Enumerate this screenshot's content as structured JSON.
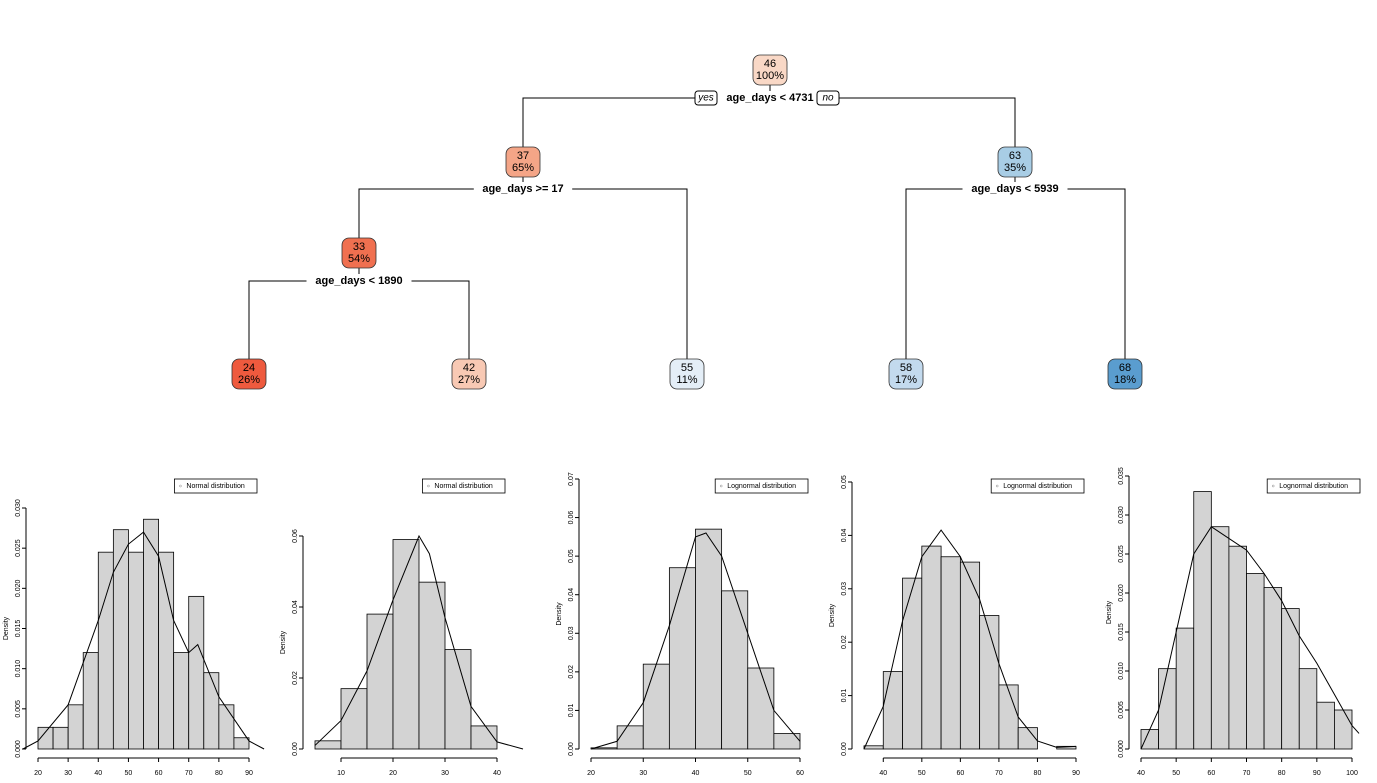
{
  "tree": {
    "yes": "yes",
    "no": "no",
    "nodes": [
      {
        "value": 46,
        "percent": "100%",
        "color": "#f9d8c6",
        "split": "age_days < 4731"
      },
      {
        "value": 37,
        "percent": "65%",
        "color": "#f4a587",
        "split": "age_days >= 17"
      },
      {
        "value": 63,
        "percent": "35%",
        "color": "#a8cde5",
        "split": "age_days < 5939"
      },
      {
        "value": 33,
        "percent": "54%",
        "color": "#f07050"
      },
      {
        "value": 24,
        "percent": "26%",
        "color": "#ee5a3e"
      },
      {
        "value": 42,
        "percent": "27%",
        "color": "#f8c9b4"
      },
      {
        "value": 55,
        "percent": "11%",
        "color": "#e4eef7"
      },
      {
        "value": 58,
        "percent": "17%",
        "color": "#c3daee"
      },
      {
        "value": 68,
        "percent": "18%",
        "color": "#5a9dcf"
      }
    ],
    "node_splits": {
      "3": "age_days < 1890"
    }
  },
  "chart_data": [
    {
      "type": "histogram",
      "legend": "Normal distribution",
      "ylabel": "Density",
      "color": "#d3d3d3",
      "bins": [
        20,
        25,
        30,
        35,
        40,
        45,
        50,
        55,
        60,
        65,
        70,
        75,
        80,
        85,
        90
      ],
      "values": [
        0.0027,
        0.0027,
        0.0055,
        0.012,
        0.0245,
        0.0273,
        0.0245,
        0.0286,
        0.0245,
        0.012,
        0.019,
        0.0095,
        0.0055,
        0.0014
      ],
      "density": {
        "x": [
          15,
          20,
          30,
          40,
          45,
          50,
          55,
          60,
          65,
          70,
          73,
          80,
          90,
          95
        ],
        "values": [
          0,
          0.001,
          0.0055,
          0.016,
          0.022,
          0.0255,
          0.027,
          0.024,
          0.016,
          0.012,
          0.013,
          0.0065,
          0.001,
          0
        ]
      },
      "xlim": [
        20,
        90
      ],
      "xticks": [
        20,
        30,
        40,
        50,
        60,
        70,
        80,
        90
      ],
      "ylim": [
        0,
        0.03
      ],
      "yticks": [
        {
          "value": 0,
          "label": "0.000"
        },
        0.005,
        {
          "value": 0.01,
          "label": "0.010"
        },
        0.015,
        {
          "value": 0.02,
          "label": "0.020"
        },
        0.025,
        {
          "value": 0.03,
          "label": "0.030"
        }
      ]
    },
    {
      "type": "histogram",
      "legend": "Normal distribution",
      "ylabel": "Density",
      "color": "#d3d3d3",
      "bins": [
        5,
        10,
        15,
        20,
        25,
        30,
        35,
        40
      ],
      "values": [
        0.0023,
        0.017,
        0.038,
        0.059,
        0.047,
        0.028,
        0.0065
      ],
      "density": {
        "x": [
          5,
          10,
          15,
          20,
          25,
          27,
          30,
          35,
          40,
          45
        ],
        "values": [
          0.001,
          0.008,
          0.022,
          0.042,
          0.06,
          0.055,
          0.037,
          0.012,
          0.002,
          0
        ]
      },
      "xlim": [
        5,
        40
      ],
      "xticks": [
        10,
        20,
        30,
        40
      ],
      "ylim": [
        0,
        0.06
      ],
      "yticks": [
        {
          "value": 0,
          "label": "0.00"
        },
        0.02,
        0.04,
        0.06
      ]
    },
    {
      "type": "histogram",
      "legend": "Lognormal distribution",
      "ylabel": "Density",
      "color": "#d3d3d3",
      "bins": [
        20,
        25,
        30,
        35,
        40,
        45,
        50,
        55,
        60
      ],
      "values": [
        0.0003,
        0.006,
        0.022,
        0.047,
        0.057,
        0.041,
        0.021,
        0.004
      ],
      "density": {
        "x": [
          20,
          25,
          30,
          35,
          40,
          42,
          45,
          50,
          55,
          60
        ],
        "values": [
          0,
          0.002,
          0.012,
          0.032,
          0.055,
          0.056,
          0.05,
          0.03,
          0.01,
          0.002
        ]
      },
      "xlim": [
        20,
        60
      ],
      "xticks": [
        20,
        30,
        40,
        50,
        60
      ],
      "ylim": [
        0,
        0.07
      ],
      "yticks": [
        {
          "value": 0,
          "label": "0.00"
        },
        0.01,
        0.02,
        0.03,
        0.04,
        0.05,
        0.06,
        0.07
      ]
    },
    {
      "type": "histogram",
      "legend": "Lognormal distribution",
      "ylabel": "Density",
      "color": "#d3d3d3",
      "bins": [
        35,
        40,
        45,
        50,
        55,
        60,
        65,
        70,
        75,
        80,
        85,
        90
      ],
      "values": [
        0.0006,
        0.0145,
        0.032,
        0.038,
        0.036,
        0.035,
        0.025,
        0.012,
        0.004,
        0,
        0.0005
      ],
      "density": {
        "x": [
          35,
          40,
          45,
          50,
          55,
          60,
          65,
          70,
          75,
          80,
          85,
          90
        ],
        "values": [
          0,
          0.008,
          0.024,
          0.036,
          0.041,
          0.036,
          0.028,
          0.016,
          0.006,
          0.0015,
          0.0003,
          0.0005
        ]
      },
      "xlim": [
        35,
        90
      ],
      "xticks": [
        40,
        50,
        60,
        70,
        80,
        90
      ],
      "ylim": [
        0,
        0.05
      ],
      "yticks": [
        {
          "value": 0,
          "label": "0.00"
        },
        0.01,
        0.02,
        0.03,
        0.04,
        0.05
      ]
    },
    {
      "type": "histogram",
      "legend": "Lognormal distribution",
      "ylabel": "Density",
      "color": "#d3d3d3",
      "bins": [
        40,
        45,
        50,
        55,
        60,
        65,
        70,
        75,
        80,
        85,
        90,
        95,
        100
      ],
      "values": [
        0.0025,
        0.0103,
        0.0155,
        0.033,
        0.0285,
        0.026,
        0.0225,
        0.0207,
        0.018,
        0.0103,
        0.006,
        0.005
      ],
      "density": {
        "x": [
          40,
          45,
          50,
          55,
          60,
          65,
          70,
          75,
          80,
          85,
          90,
          95,
          100,
          102
        ],
        "values": [
          0,
          0.005,
          0.015,
          0.025,
          0.0285,
          0.027,
          0.0255,
          0.0225,
          0.019,
          0.0145,
          0.011,
          0.007,
          0.003,
          0.002
        ]
      },
      "xlim": [
        40,
        100
      ],
      "xticks": [
        40,
        50,
        60,
        70,
        80,
        90,
        100
      ],
      "ylim": [
        0,
        0.035
      ],
      "yticks": [
        {
          "value": 0,
          "label": "0.000"
        },
        0.005,
        {
          "value": 0.01,
          "label": "0.010"
        },
        0.015,
        {
          "value": 0.02,
          "label": "0.020"
        },
        0.025,
        {
          "value": 0.03,
          "label": "0.030"
        },
        0.035
      ]
    }
  ]
}
